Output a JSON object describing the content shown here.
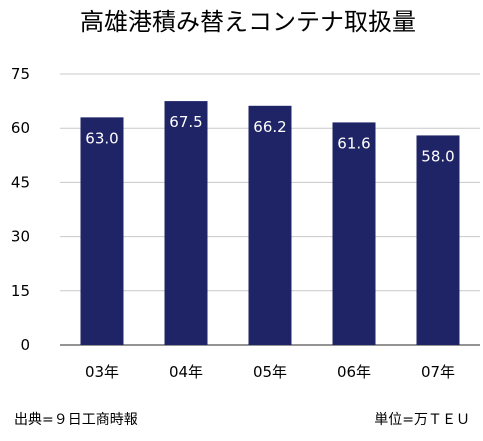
{
  "chart_data": {
    "type": "bar",
    "title": "高雄港積み替えコンテナ取扱量",
    "categories": [
      "03年",
      "04年",
      "05年",
      "06年",
      "07年"
    ],
    "values": [
      63.0,
      67.5,
      66.2,
      61.6,
      58.0
    ],
    "data_labels": [
      "63.0",
      "67.5",
      "66.2",
      "61.6",
      "58.0"
    ],
    "y_ticks": [
      "0",
      "15",
      "30",
      "45",
      "60",
      "75"
    ],
    "ylim": [
      0,
      75
    ],
    "grid": true,
    "bar_color": "#1f2466",
    "grid_color": "#c8c8c8"
  },
  "footer": {
    "source": "出典=９日工商時報",
    "unit": "単位=万ＴＥＵ"
  }
}
